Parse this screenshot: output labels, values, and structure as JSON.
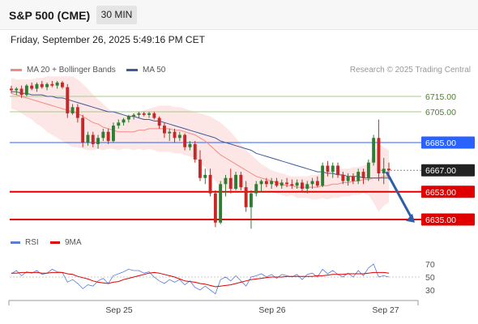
{
  "header": {
    "title": "S&P 500 (CME)",
    "timeframe": "30 MIN"
  },
  "datetime": "Friday, September 26, 2025 5:49:16 PM CET",
  "legend": [
    {
      "label": "MA 20 + Bollinger Bands",
      "color": "#f28b82"
    },
    {
      "label": "MA 50",
      "color": "#3d5a99"
    }
  ],
  "credit": "Research © 2025 Trading Central",
  "rsi_legend": [
    {
      "label": "RSI",
      "color": "#5b7bd5"
    },
    {
      "label": "9MA",
      "color": "#e00000"
    }
  ],
  "colors": {
    "up": "#2e7d32",
    "down": "#c62828",
    "resistance": "#a5cc8a",
    "pivot": "#2962ff",
    "support": "#e00000",
    "last": "#222222",
    "arrow": "#2d5ea8"
  },
  "chart_data": [
    {
      "type": "candlestick",
      "y_range": [
        6625,
        6725
      ],
      "x_ticks": [
        "Sep 25",
        "Sep 26",
        "Sep 27"
      ],
      "levels": [
        {
          "label": "6715.00",
          "value": 6715,
          "kind": "resistance"
        },
        {
          "label": "6705.00",
          "value": 6705,
          "kind": "resistance"
        },
        {
          "label": "6685.00",
          "value": 6685,
          "kind": "pivot"
        },
        {
          "label": "6667.00",
          "value": 6667,
          "kind": "last"
        },
        {
          "label": "6653.00",
          "value": 6653,
          "kind": "support"
        },
        {
          "label": "6635.00",
          "value": 6635,
          "kind": "support"
        }
      ],
      "candles": [
        [
          6720,
          6722,
          6717,
          6719
        ],
        [
          6719,
          6721,
          6716,
          6720
        ],
        [
          6720,
          6722,
          6714,
          6716
        ],
        [
          6716,
          6723,
          6715,
          6722
        ],
        [
          6722,
          6724,
          6719,
          6720
        ],
        [
          6720,
          6724,
          6718,
          6723
        ],
        [
          6723,
          6725,
          6720,
          6721
        ],
        [
          6721,
          6724,
          6719,
          6723
        ],
        [
          6723,
          6725,
          6721,
          6722
        ],
        [
          6722,
          6725,
          6720,
          6724
        ],
        [
          6724,
          6725,
          6720,
          6721
        ],
        [
          6721,
          6723,
          6701,
          6704
        ],
        [
          6704,
          6710,
          6703,
          6708
        ],
        [
          6708,
          6710,
          6698,
          6701
        ],
        [
          6701,
          6703,
          6682,
          6685
        ],
        [
          6685,
          6692,
          6683,
          6690
        ],
        [
          6690,
          6692,
          6682,
          6684
        ],
        [
          6684,
          6690,
          6681,
          6688
        ],
        [
          6688,
          6694,
          6686,
          6692
        ],
        [
          6692,
          6694,
          6684,
          6686
        ],
        [
          6686,
          6698,
          6685,
          6696
        ],
        [
          6696,
          6700,
          6694,
          6698
        ],
        [
          6698,
          6701,
          6696,
          6700
        ],
        [
          6700,
          6703,
          6698,
          6702
        ],
        [
          6702,
          6704,
          6700,
          6703
        ],
        [
          6703,
          6705,
          6701,
          6704
        ],
        [
          6704,
          6705,
          6702,
          6703
        ],
        [
          6703,
          6705,
          6701,
          6704
        ],
        [
          6704,
          6705,
          6700,
          6701
        ],
        [
          6701,
          6702,
          6694,
          6696
        ],
        [
          6696,
          6698,
          6688,
          6691
        ],
        [
          6691,
          6694,
          6686,
          6692
        ],
        [
          6692,
          6694,
          6685,
          6688
        ],
        [
          6688,
          6692,
          6686,
          6690
        ],
        [
          6690,
          6691,
          6680,
          6682
        ],
        [
          6682,
          6686,
          6680,
          6684
        ],
        [
          6684,
          6686,
          6672,
          6674
        ],
        [
          6674,
          6680,
          6660,
          6662
        ],
        [
          6662,
          6668,
          6658,
          6664
        ],
        [
          6664,
          6668,
          6650,
          6652
        ],
        [
          6652,
          6654,
          6630,
          6633
        ],
        [
          6633,
          6660,
          6632,
          6658
        ],
        [
          6658,
          6664,
          6650,
          6662
        ],
        [
          6662,
          6668,
          6652,
          6655
        ],
        [
          6655,
          6666,
          6654,
          6664
        ],
        [
          6664,
          6666,
          6654,
          6656
        ],
        [
          6656,
          6660,
          6640,
          6643
        ],
        [
          6643,
          6654,
          6629,
          6652
        ],
        [
          6652,
          6660,
          6650,
          6658
        ],
        [
          6658,
          6661,
          6653,
          6660
        ],
        [
          6660,
          6662,
          6656,
          6658
        ],
        [
          6658,
          6662,
          6655,
          6660
        ],
        [
          6660,
          6662,
          6656,
          6657
        ],
        [
          6657,
          6661,
          6655,
          6659
        ],
        [
          6659,
          6662,
          6656,
          6658
        ],
        [
          6658,
          6661,
          6655,
          6657
        ],
        [
          6657,
          6661,
          6655,
          6659
        ],
        [
          6659,
          6661,
          6653,
          6655
        ],
        [
          6655,
          6660,
          6652,
          6658
        ],
        [
          6658,
          6662,
          6655,
          6660
        ],
        [
          6660,
          6663,
          6656,
          6657
        ],
        [
          6657,
          6672,
          6656,
          6670
        ],
        [
          6670,
          6673,
          6663,
          6666
        ],
        [
          6666,
          6672,
          6662,
          6670
        ],
        [
          6670,
          6672,
          6662,
          6664
        ],
        [
          6664,
          6666,
          6658,
          6660
        ],
        [
          6660,
          6665,
          6657,
          6663
        ],
        [
          6663,
          6665,
          6658,
          6660
        ],
        [
          6660,
          6668,
          6658,
          6666
        ],
        [
          6666,
          6668,
          6658,
          6662
        ],
        [
          6662,
          6674,
          6660,
          6672
        ],
        [
          6672,
          6690,
          6670,
          6688
        ],
        [
          6688,
          6700,
          6660,
          6665
        ],
        [
          6665,
          6675,
          6658,
          6668
        ],
        [
          6668,
          6672,
          6661,
          6667
        ]
      ],
      "ma20": [
        6717,
        6716,
        6715,
        6714,
        6713,
        6712,
        6711,
        6710,
        6709,
        6708,
        6707,
        6706,
        6705,
        6704,
        6702,
        6700,
        6698,
        6697,
        6695,
        6694,
        6693,
        6692,
        6692,
        6692,
        6692,
        6693,
        6693,
        6694,
        6694,
        6694,
        6694,
        6694,
        6693,
        6693,
        6692,
        6691,
        6690,
        6688,
        6686,
        6683,
        6680,
        6677,
        6675,
        6673,
        6671,
        6669,
        6667,
        6665,
        6663,
        6662,
        6661,
        6660,
        6659,
        6658,
        6657,
        6657,
        6656,
        6656,
        6656,
        6656,
        6656,
        6657,
        6657,
        6658,
        6658,
        6659,
        6659,
        6660,
        6660,
        6661,
        6661,
        6662,
        6662,
        6663,
        6663
      ],
      "ma50": [
        6718,
        6718,
        6717,
        6717,
        6716,
        6716,
        6716,
        6715,
        6715,
        6714,
        6714,
        6713,
        6712,
        6711,
        6710,
        6709,
        6708,
        6707,
        6706,
        6705,
        6705,
        6704,
        6703,
        6702,
        6702,
        6701,
        6700,
        6700,
        6699,
        6699,
        6698,
        6697,
        6696,
        6695,
        6694,
        6693,
        6692,
        6691,
        6690,
        6689,
        6688,
        6686,
        6685,
        6684,
        6683,
        6682,
        6681,
        6680,
        6678,
        6677,
        6676,
        6675,
        6674,
        6673,
        6672,
        6671,
        6670,
        6669,
        6668,
        6667,
        6666,
        6666,
        6665,
        6665,
        6664,
        6664,
        6663,
        6663,
        6663,
        6662,
        6662,
        6662,
        6662,
        6662,
        6662
      ],
      "bb_upper": [
        6727,
        6726,
        6726,
        6726,
        6726,
        6727,
        6727,
        6728,
        6728,
        6728,
        6728,
        6728,
        6728,
        6726,
        6723,
        6720,
        6716,
        6713,
        6710,
        6707,
        6705,
        6704,
        6703,
        6703,
        6704,
        6705,
        6706,
        6707,
        6708,
        6709,
        6709,
        6709,
        6708,
        6708,
        6707,
        6706,
        6705,
        6704,
        6703,
        6702,
        6700,
        6698,
        6695,
        6692,
        6688,
        6684,
        6680,
        6677,
        6674,
        6671,
        6669,
        6667,
        6666,
        6665,
        6664,
        6663,
        6663,
        6663,
        6663,
        6664,
        6664,
        6665,
        6666,
        6667,
        6667,
        6668,
        6668,
        6669,
        6669,
        6670,
        6671,
        6678,
        6684,
        6682,
        6680
      ],
      "bb_lower": [
        6707,
        6706,
        6704,
        6702,
        6700,
        6697,
        6695,
        6692,
        6690,
        6688,
        6686,
        6684,
        6682,
        6682,
        6681,
        6680,
        6680,
        6681,
        6680,
        6681,
        6681,
        6680,
        6681,
        6681,
        6680,
        6681,
        6680,
        6681,
        6680,
        6679,
        6679,
        6679,
        6678,
        6678,
        6677,
        6676,
        6675,
        6672,
        6669,
        6664,
        6660,
        6656,
        6655,
        6654,
        6654,
        6654,
        6654,
        6653,
        6652,
        6653,
        6653,
        6653,
        6652,
        6651,
        6650,
        6651,
        6649,
        6649,
        6649,
        6648,
        6648,
        6649,
        6648,
        6649,
        6649,
        6650,
        6650,
        6651,
        6651,
        6652,
        6651,
        6646,
        6640,
        6644,
        6646
      ]
    },
    {
      "type": "line",
      "name": "RSI",
      "y_range": [
        20,
        80
      ],
      "y_ticks": [
        70,
        50,
        30
      ],
      "rsi": [
        55,
        60,
        52,
        58,
        56,
        60,
        54,
        56,
        62,
        58,
        57,
        42,
        46,
        40,
        32,
        38,
        36,
        44,
        48,
        40,
        52,
        55,
        58,
        62,
        60,
        60,
        56,
        58,
        50,
        44,
        40,
        46,
        42,
        46,
        38,
        44,
        34,
        30,
        36,
        30,
        24,
        46,
        50,
        44,
        52,
        44,
        36,
        50,
        52,
        55,
        50,
        54,
        48,
        54,
        52,
        50,
        54,
        46,
        54,
        56,
        50,
        62,
        55,
        60,
        54,
        50,
        56,
        50,
        60,
        52,
        64,
        70,
        50,
        52,
        50
      ],
      "ma9": [
        56,
        56,
        57,
        57,
        57,
        57,
        56,
        56,
        57,
        57,
        57,
        55,
        54,
        51,
        49,
        47,
        44,
        42,
        41,
        40,
        42,
        43,
        46,
        48,
        50,
        52,
        54,
        56,
        57,
        56,
        54,
        52,
        50,
        47,
        44,
        43,
        42,
        40,
        39,
        37,
        35,
        36,
        37,
        38,
        40,
        42,
        44,
        46,
        47,
        48,
        49,
        50,
        50,
        50,
        51,
        51,
        51,
        51,
        51,
        51,
        52,
        52,
        53,
        54,
        54,
        54,
        55,
        55,
        55,
        55,
        56,
        57,
        57,
        57,
        56
      ]
    }
  ]
}
